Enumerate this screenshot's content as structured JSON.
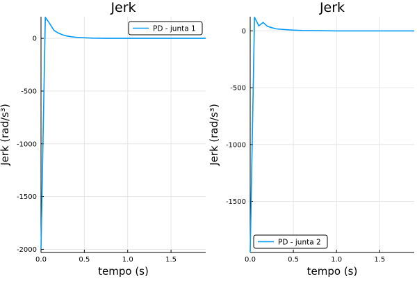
{
  "colors": {
    "series": "#009AFA",
    "grid": "#e6e6e6",
    "background": "#ffffff"
  },
  "chart_data": [
    {
      "type": "line",
      "title": "Jerk",
      "xlabel": "tempo (s)",
      "ylabel": "Jerk (rad/s³)",
      "xlim": [
        0,
        1.9
      ],
      "ylim": [
        -2030,
        205
      ],
      "xticks": [
        0,
        0.5,
        1,
        1.5
      ],
      "xtick_labels": [
        "0.0",
        "0.5",
        "1.0",
        "1.5"
      ],
      "yticks": [
        -2000,
        -1500,
        -1000,
        -500,
        0
      ],
      "ytick_labels": [
        "-2000",
        "-1500",
        "-1000",
        "-500",
        "0"
      ],
      "grid": true,
      "legend_position": "top-right",
      "series": [
        {
          "name": "PD - junta 1",
          "x": [
            0,
            0.05,
            0.1,
            0.15,
            0.2,
            0.25,
            0.3,
            0.35,
            0.4,
            0.5,
            0.6,
            0.75,
            1.0,
            1.5,
            1.9
          ],
          "y": [
            -2000,
            200,
            140,
            75,
            50,
            33,
            22,
            15,
            10,
            5,
            2,
            0,
            0,
            0,
            0
          ]
        }
      ]
    },
    {
      "type": "line",
      "title": "Jerk",
      "xlabel": "tempo (s)",
      "ylabel": "Jerk (rad/s³)",
      "xlim": [
        0,
        1.9
      ],
      "ylim": [
        -1950,
        125
      ],
      "xticks": [
        0,
        0.5,
        1,
        1.5
      ],
      "xtick_labels": [
        "0.0",
        "0.5",
        "1.0",
        "1.5"
      ],
      "yticks": [
        -1500,
        -1000,
        -500,
        0
      ],
      "ytick_labels": [
        "-1500",
        "-1000",
        "-500",
        "0"
      ],
      "grid": true,
      "legend_position": "bottom-left",
      "series": [
        {
          "name": "PD - junta 2",
          "x": [
            0,
            0.05,
            0.1,
            0.15,
            0.2,
            0.25,
            0.3,
            0.4,
            0.5,
            0.6,
            0.75,
            1.0,
            1.5,
            1.9
          ],
          "y": [
            -1950,
            120,
            45,
            75,
            40,
            28,
            18,
            12,
            7,
            4,
            2,
            0,
            0,
            0
          ]
        }
      ]
    }
  ]
}
